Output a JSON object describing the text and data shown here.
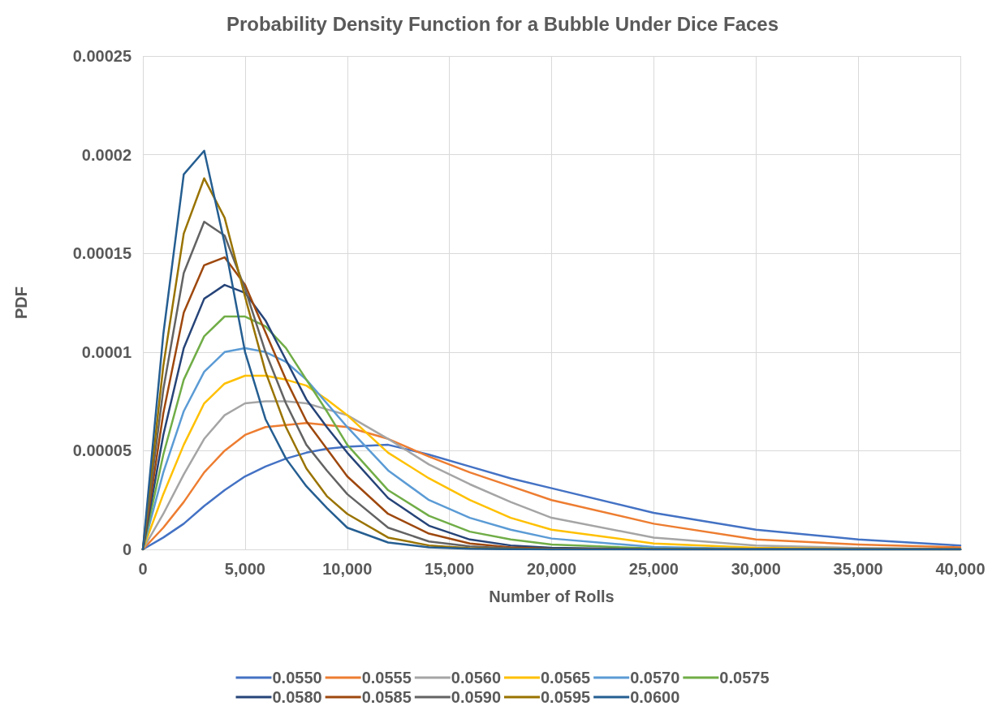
{
  "chart_data": {
    "type": "line",
    "title": "Probability Density Function for a Bubble Under Dice Faces",
    "xlabel": "Number of Rolls",
    "ylabel": "PDF",
    "x": [
      0,
      1000,
      2000,
      3000,
      4000,
      5000,
      6000,
      7000,
      8000,
      9000,
      10000,
      12000,
      14000,
      16000,
      18000,
      20000,
      25000,
      30000,
      35000,
      40000
    ],
    "series": [
      {
        "name": "0.0550",
        "color": "#4472c4",
        "values": [
          0,
          6e-06,
          1.3e-05,
          2.2e-05,
          3e-05,
          3.7e-05,
          4.2e-05,
          4.6e-05,
          4.9e-05,
          5.1e-05,
          5.2e-05,
          5.3e-05,
          4.8e-05,
          4.2e-05,
          3.6e-05,
          3.1e-05,
          1.85e-05,
          1e-05,
          5e-06,
          2e-06
        ]
      },
      {
        "name": "0.0555",
        "color": "#ed7d31",
        "values": [
          0,
          1.1e-05,
          2.4e-05,
          3.9e-05,
          5e-05,
          5.8e-05,
          6.2e-05,
          6.3e-05,
          6.4e-05,
          6.3e-05,
          6.2e-05,
          5.6e-05,
          4.7e-05,
          3.9e-05,
          3.2e-05,
          2.5e-05,
          1.3e-05,
          5e-06,
          2.5e-06,
          1e-06
        ]
      },
      {
        "name": "0.0560",
        "color": "#a5a5a5",
        "values": [
          0,
          1.8e-05,
          3.8e-05,
          5.6e-05,
          6.8e-05,
          7.4e-05,
          7.5e-05,
          7.5e-05,
          7.4e-05,
          7.1e-05,
          6.8e-05,
          5.6e-05,
          4.3e-05,
          3.3e-05,
          2.4e-05,
          1.6e-05,
          6e-06,
          2e-06,
          7e-07,
          2e-07
        ]
      },
      {
        "name": "0.0565",
        "color": "#ffc000",
        "values": [
          0,
          2.8e-05,
          5.3e-05,
          7.4e-05,
          8.4e-05,
          8.8e-05,
          8.8e-05,
          8.6e-05,
          8.3e-05,
          7.6e-05,
          6.8e-05,
          4.9e-05,
          3.6e-05,
          2.5e-05,
          1.6e-05,
          1e-05,
          3e-06,
          8e-07,
          2e-07,
          0
        ]
      },
      {
        "name": "0.0570",
        "color": "#5b9bd5",
        "values": [
          0,
          3.9e-05,
          7e-05,
          9e-05,
          0.0001,
          0.000102,
          0.0001,
          9.5e-05,
          8.6e-05,
          7.4e-05,
          6.2e-05,
          4e-05,
          2.5e-05,
          1.6e-05,
          1e-05,
          5.5e-06,
          1.2e-06,
          2e-07,
          0,
          0
        ]
      },
      {
        "name": "0.0575",
        "color": "#70ad47",
        "values": [
          0,
          4.8e-05,
          8.6e-05,
          0.000108,
          0.000118,
          0.000118,
          0.000113,
          0.000102,
          8.6e-05,
          7e-05,
          5.3e-05,
          3e-05,
          1.7e-05,
          9e-06,
          5e-06,
          2.5e-06,
          4e-07,
          0,
          0,
          0
        ]
      },
      {
        "name": "0.0580",
        "color": "#264478",
        "values": [
          0,
          5.8e-05,
          0.000102,
          0.000127,
          0.000134,
          0.00013,
          0.000116,
          9.6e-05,
          7.6e-05,
          6.2e-05,
          4.9e-05,
          2.6e-05,
          1.2e-05,
          5e-06,
          2e-06,
          8e-07,
          0,
          0,
          0,
          0
        ]
      },
      {
        "name": "0.0585",
        "color": "#9e480e",
        "values": [
          0,
          6.9e-05,
          0.00012,
          0.000144,
          0.000148,
          0.000134,
          0.00011,
          8.6e-05,
          6.5e-05,
          5.1e-05,
          3.7e-05,
          1.8e-05,
          8e-06,
          3e-06,
          1e-06,
          3e-07,
          0,
          0,
          0,
          0
        ]
      },
      {
        "name": "0.0590",
        "color": "#636363",
        "values": [
          0,
          8.1e-05,
          0.00014,
          0.000166,
          0.000159,
          0.000132,
          0.0001,
          7.4e-05,
          5.3e-05,
          4e-05,
          2.8e-05,
          1.1e-05,
          4e-06,
          1.5e-06,
          5e-07,
          0,
          0,
          0,
          0,
          0
        ]
      },
      {
        "name": "0.0595",
        "color": "#997300",
        "values": [
          0,
          9.3e-05,
          0.00016,
          0.000188,
          0.000168,
          0.000128,
          9e-05,
          6.2e-05,
          4.1e-05,
          2.7e-05,
          1.8e-05,
          6e-06,
          2e-06,
          6e-07,
          2e-07,
          0,
          0,
          0,
          0,
          0
        ]
      },
      {
        "name": "0.0600",
        "color": "#255e91",
        "values": [
          0,
          0.000109,
          0.00019,
          0.000202,
          0.000155,
          0.0001,
          6.6e-05,
          4.6e-05,
          3.2e-05,
          2.1e-05,
          1.1e-05,
          3.5e-06,
          1e-06,
          3e-07,
          1e-07,
          0,
          0,
          0,
          0,
          0
        ]
      }
    ],
    "xlim": [
      0,
      40000
    ],
    "xticks": [
      {
        "value": 0,
        "label": "0"
      },
      {
        "value": 5000,
        "label": "5,000"
      },
      {
        "value": 10000,
        "label": "10,000"
      },
      {
        "value": 15000,
        "label": "15,000"
      },
      {
        "value": 20000,
        "label": "20,000"
      },
      {
        "value": 25000,
        "label": "25,000"
      },
      {
        "value": 30000,
        "label": "30,000"
      },
      {
        "value": 35000,
        "label": "35,000"
      },
      {
        "value": 40000,
        "label": "40,000"
      }
    ],
    "ylim": [
      0,
      0.00025
    ],
    "yticks": [
      0,
      {
        "value": 5e-05,
        "label": "0.00005"
      },
      0.0001,
      0.00015,
      0.0002,
      0.00025
    ],
    "grid": true,
    "legend": "bottom",
    "marker": "none",
    "line_style": "solid"
  }
}
